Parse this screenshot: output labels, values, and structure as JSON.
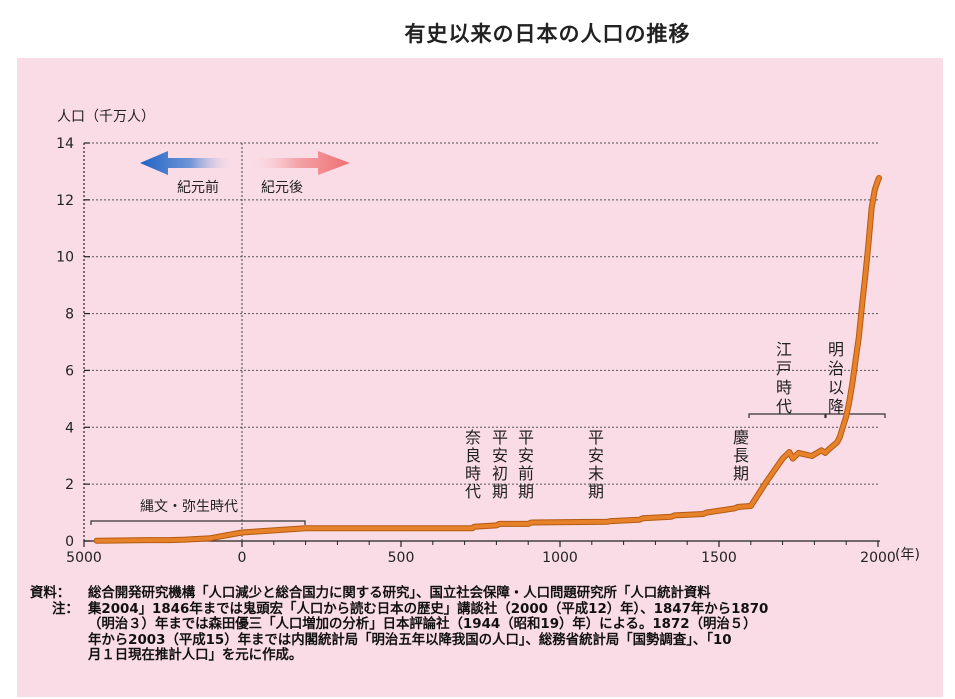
{
  "title": "有史以来の日本の人口の推移",
  "chart_data": {
    "type": "line",
    "title": "有史以来の日本の人口の推移",
    "ylabel": "人口（千万人）",
    "xlabel": "(年)",
    "ylim": [
      0,
      14
    ],
    "xlim": [
      -5000,
      2000
    ],
    "y_ticks": [
      "0",
      "2",
      "4",
      "6",
      "8",
      "10",
      "12",
      "14"
    ],
    "x_ticks": [
      "5000",
      "0",
      "500",
      "1000",
      "1500",
      "2000"
    ],
    "x_tick_values": [
      -5000,
      0,
      500,
      1000,
      1500,
      2000
    ],
    "grid": "dotted horizontal",
    "series": [
      {
        "color": "#e8822a",
        "x": [
          -4600,
          -3000,
          -2300,
          -1800,
          -1000,
          0,
          200,
          725,
          730,
          800,
          810,
          900,
          910,
          1150,
          1160,
          1250,
          1260,
          1350,
          1360,
          1450,
          1460,
          1550,
          1560,
          1600,
          1650,
          1700,
          1721,
          1732,
          1750,
          1792,
          1804,
          1822,
          1834,
          1846,
          1872,
          1880,
          1890,
          1900,
          1910,
          1920,
          1930,
          1940,
          1950,
          1960,
          1970,
          1980,
          1990,
          2000,
          2003
        ],
        "y": [
          0.01,
          0.03,
          0.03,
          0.05,
          0.1,
          0.3,
          0.45,
          0.45,
          0.5,
          0.55,
          0.6,
          0.6,
          0.65,
          0.68,
          0.7,
          0.75,
          0.8,
          0.85,
          0.9,
          0.95,
          1.0,
          1.15,
          1.2,
          1.23,
          2.1,
          2.9,
          3.13,
          2.9,
          3.1,
          2.99,
          3.07,
          3.19,
          3.1,
          3.23,
          3.48,
          3.66,
          4.03,
          4.38,
          4.92,
          5.6,
          6.4,
          7.19,
          8.32,
          9.34,
          10.47,
          11.71,
          12.36,
          12.69,
          12.77
        ]
      }
    ],
    "annotations": {
      "arrow_left": "紀元前",
      "arrow_right": "紀元後",
      "era_jomon": "縄文・弥生時代",
      "era_nara": "奈良時代",
      "era_heian_early": "平安初期",
      "era_heian_mid": "平安前期",
      "era_heian_late": "平安末期",
      "era_keicho": "慶長期",
      "era_edo": "江戸時代",
      "era_meiji": "明治以降"
    }
  },
  "notes": {
    "source_label": "資料：",
    "source_text": "総合開発研究機構「人口減少と総合国力に関する研究」、国立社会保障・人口問題研究所「人口統計資料",
    "note_label": "注：",
    "note_text": "集2004」1846年までは鬼頭宏「人口から読む日本の歴史」講談社（2000（平成12）年）、1847年から1870\n（明治３）年までは森田優三「人口増加の分析」日本評論社（1944（昭和19）年）による。1872（明治５）\n年から2003（平成15）年までは内閣統計局「明治五年以降我国の人口」、総務省統計局「国勢調査」、「10\n月１日現在推計人口」を元に作成。"
  }
}
